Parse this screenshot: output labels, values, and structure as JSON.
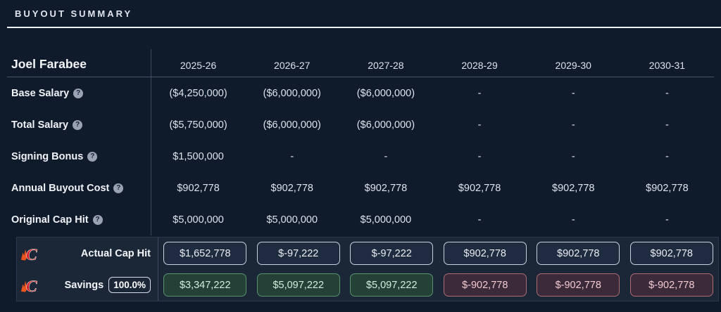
{
  "header": {
    "title": "BUYOUT SUMMARY"
  },
  "player": {
    "name": "Joel Farabee"
  },
  "columns": [
    "2025-26",
    "2026-27",
    "2027-28",
    "2028-29",
    "2029-30",
    "2030-31"
  ],
  "rows": [
    {
      "label": "Base Salary",
      "help": "?",
      "values": [
        "($4,250,000)",
        "($6,000,000)",
        "($6,000,000)",
        "-",
        "-",
        "-"
      ]
    },
    {
      "label": "Total Salary",
      "help": "?",
      "values": [
        "($5,750,000)",
        "($6,000,000)",
        "($6,000,000)",
        "-",
        "-",
        "-"
      ]
    },
    {
      "label": "Signing Bonus",
      "help": "?",
      "values": [
        "$1,500,000",
        "-",
        "-",
        "-",
        "-",
        "-"
      ]
    },
    {
      "label": "Annual Buyout Cost",
      "help": "?",
      "values": [
        "$902,778",
        "$902,778",
        "$902,778",
        "$902,778",
        "$902,778",
        "$902,778"
      ]
    },
    {
      "label": "Original Cap Hit",
      "help": "?",
      "values": [
        "$5,000,000",
        "$5,000,000",
        "$5,000,000",
        "-",
        "-",
        "-"
      ]
    }
  ],
  "summary": {
    "team_logo": "calgary-flames",
    "logo_letter": "C",
    "rows": [
      {
        "id": "actual-cap-hit",
        "label": "Actual Cap Hit",
        "badge": null,
        "values": [
          {
            "text": "$1,652,778",
            "tone": "neutral"
          },
          {
            "text": "$-97,222",
            "tone": "neutral"
          },
          {
            "text": "$-97,222",
            "tone": "neutral"
          },
          {
            "text": "$902,778",
            "tone": "neutral"
          },
          {
            "text": "$902,778",
            "tone": "neutral"
          },
          {
            "text": "$902,778",
            "tone": "neutral"
          }
        ]
      },
      {
        "id": "savings",
        "label": "Savings",
        "badge": "100.0%",
        "values": [
          {
            "text": "$3,347,222",
            "tone": "positive"
          },
          {
            "text": "$5,097,222",
            "tone": "positive"
          },
          {
            "text": "$5,097,222",
            "tone": "positive"
          },
          {
            "text": "$-902,778",
            "tone": "negative"
          },
          {
            "text": "$-902,778",
            "tone": "negative"
          },
          {
            "text": "$-902,778",
            "tone": "negative"
          }
        ]
      }
    ]
  },
  "colors": {
    "background": "#0f1a2b",
    "summary_background": "#1b2637",
    "positive_border": "#579170",
    "positive_background": "#234137",
    "positive_text": "#cfeede",
    "negative_border": "#ab6c74",
    "negative_background": "#3b2b3a",
    "negative_text": "#f2c9d1",
    "neutral_border": "#c7d1de",
    "flames_red": "#d2212e",
    "flames_orange": "#e9541f"
  }
}
